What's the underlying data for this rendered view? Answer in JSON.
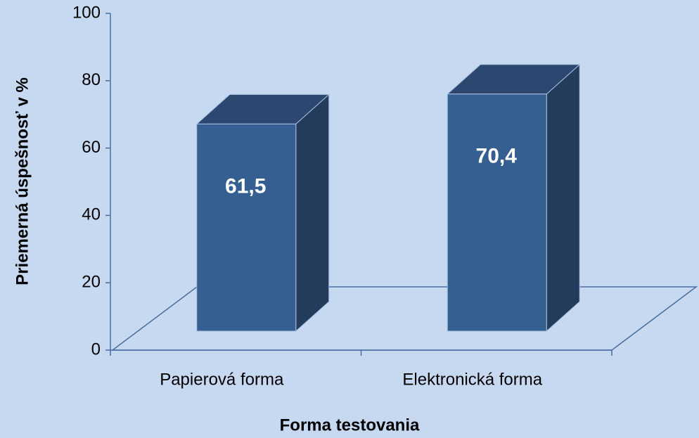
{
  "chart_data": {
    "type": "bar",
    "x_label": "Forma testovania",
    "y_label": "Priemerná úspešnosť v %",
    "categories": [
      "Papierová forma",
      "Elektronická forma"
    ],
    "values": [
      61.5,
      70.4
    ],
    "value_labels": [
      "61,5",
      "70,4"
    ],
    "color": "#365f91",
    "ylim": [
      0,
      100
    ],
    "yticks": [
      0,
      20,
      40,
      60,
      80,
      100
    ],
    "three_d": true
  }
}
